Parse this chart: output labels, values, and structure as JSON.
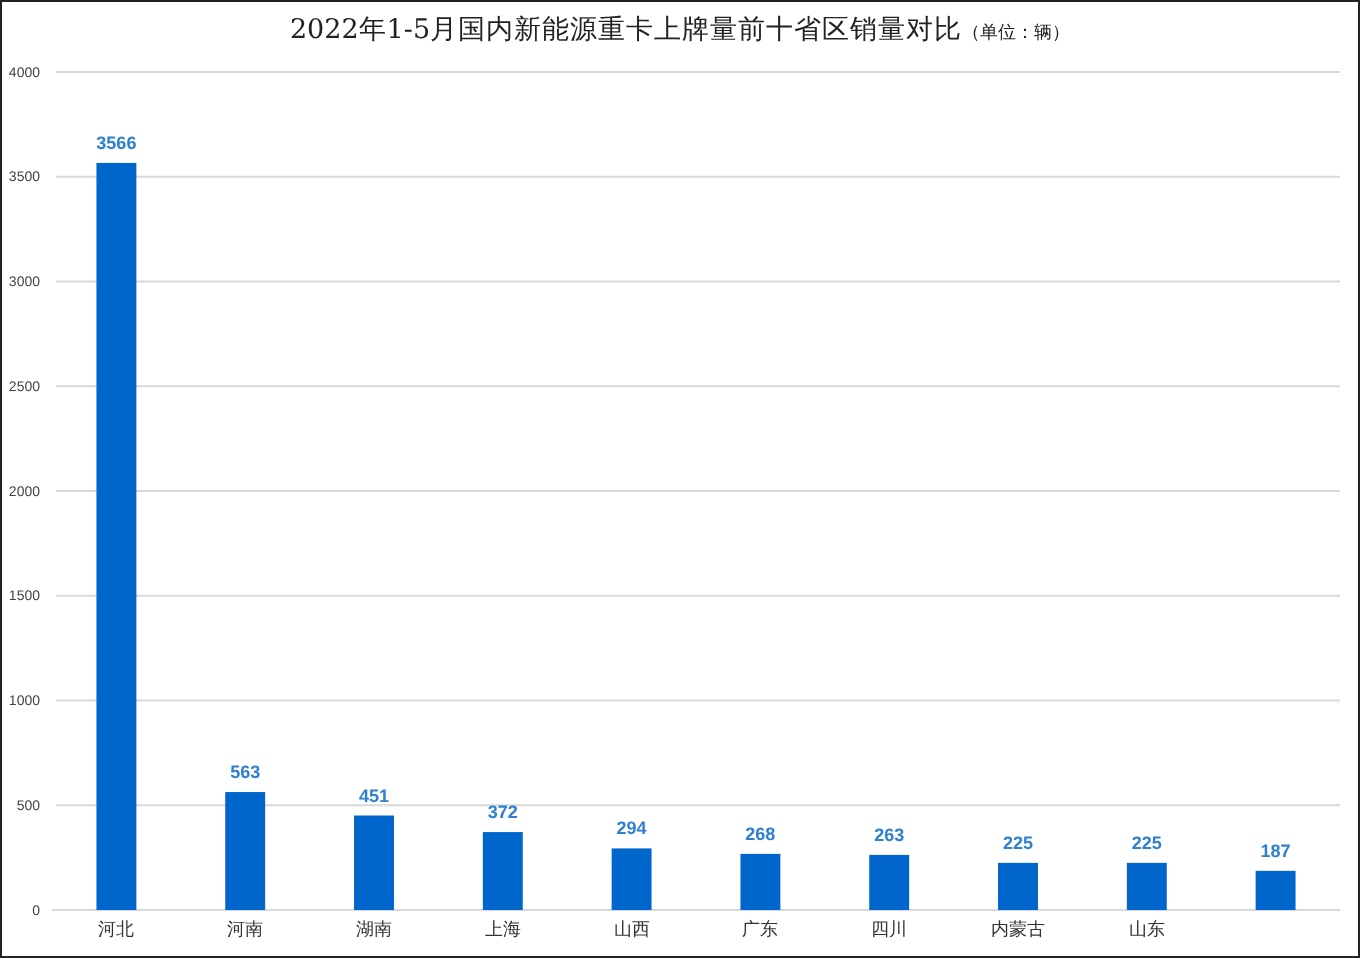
{
  "chart_data": {
    "type": "bar",
    "title": "2022年1-5月国内新能源重卡上牌量前十省区销量对比",
    "subtitle": "（单位：辆）",
    "categories": [
      "河北",
      "河南",
      "湖南",
      "上海",
      "山西",
      "广东",
      "四川",
      "内蒙古",
      "山东",
      null
    ],
    "values": [
      3566,
      563,
      451,
      372,
      294,
      268,
      263,
      225,
      225,
      187
    ],
    "color": "#0066cc",
    "ylim": [
      0,
      4000
    ],
    "yticks": [
      0,
      500,
      1000,
      1500,
      2000,
      2500,
      3000,
      3500,
      4000
    ],
    "grid": "y",
    "data_labels": true
  }
}
